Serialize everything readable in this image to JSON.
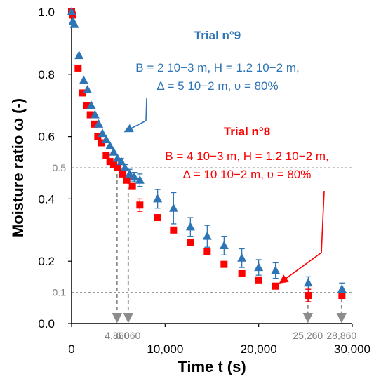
{
  "chart_data": {
    "type": "scatter",
    "xlabel": "Time t (s)",
    "ylabel": "Moisture ratio ω (-)",
    "xlim": [
      0,
      30000
    ],
    "ylim": [
      0,
      1.0
    ],
    "x_ticks": [
      "0",
      "10,000",
      "20,000",
      "30,000"
    ],
    "y_ticks": [
      "0.0",
      "0.2",
      "0.4",
      "0.6",
      "0.8",
      "1.0"
    ],
    "grid": false,
    "series": [
      {
        "name": "Trial n°9",
        "color": "#2E75B6",
        "marker": "triangle",
        "points": [
          {
            "x": 0,
            "y": 1.0
          },
          {
            "x": 150,
            "y": 0.97
          },
          {
            "x": 300,
            "y": 0.96
          },
          {
            "x": 800,
            "y": 0.86
          },
          {
            "x": 1300,
            "y": 0.78
          },
          {
            "x": 1700,
            "y": 0.75
          },
          {
            "x": 2100,
            "y": 0.7
          },
          {
            "x": 2500,
            "y": 0.67
          },
          {
            "x": 2900,
            "y": 0.64
          },
          {
            "x": 3300,
            "y": 0.61
          },
          {
            "x": 3700,
            "y": 0.59
          },
          {
            "x": 4100,
            "y": 0.57
          },
          {
            "x": 4500,
            "y": 0.55
          },
          {
            "x": 4900,
            "y": 0.53
          },
          {
            "x": 5300,
            "y": 0.52
          },
          {
            "x": 5700,
            "y": 0.5
          },
          {
            "x": 6200,
            "y": 0.48
          },
          {
            "x": 6700,
            "y": 0.47
          },
          {
            "x": 7300,
            "y": 0.46
          },
          {
            "x": 9200,
            "y": 0.4
          },
          {
            "x": 10900,
            "y": 0.37
          },
          {
            "x": 12700,
            "y": 0.31
          },
          {
            "x": 14500,
            "y": 0.28
          },
          {
            "x": 16300,
            "y": 0.25
          },
          {
            "x": 18200,
            "y": 0.21
          },
          {
            "x": 20000,
            "y": 0.18
          },
          {
            "x": 21800,
            "y": 0.17
          },
          {
            "x": 25300,
            "y": 0.13
          },
          {
            "x": 28900,
            "y": 0.11
          }
        ],
        "errors": [
          0,
          0,
          0,
          0,
          0,
          0,
          0,
          0,
          0,
          0,
          0,
          0,
          0,
          0,
          0.01,
          0.01,
          0.015,
          0.015,
          0.02,
          0.03,
          0.05,
          0.03,
          0.035,
          0.03,
          0.03,
          0.025,
          0.025,
          0.02,
          0.02
        ]
      },
      {
        "name": "Trial n°8",
        "color": "#FF0000",
        "marker": "square",
        "points": [
          {
            "x": 0,
            "y": 1.0
          },
          {
            "x": 150,
            "y": 0.99
          },
          {
            "x": 700,
            "y": 0.82
          },
          {
            "x": 1200,
            "y": 0.74
          },
          {
            "x": 1600,
            "y": 0.7
          },
          {
            "x": 2000,
            "y": 0.67
          },
          {
            "x": 2400,
            "y": 0.64
          },
          {
            "x": 2800,
            "y": 0.6
          },
          {
            "x": 3200,
            "y": 0.58
          },
          {
            "x": 3700,
            "y": 0.54
          },
          {
            "x": 4100,
            "y": 0.52
          },
          {
            "x": 4500,
            "y": 0.51
          },
          {
            "x": 4900,
            "y": 0.5
          },
          {
            "x": 5400,
            "y": 0.48
          },
          {
            "x": 5900,
            "y": 0.46
          },
          {
            "x": 6500,
            "y": 0.44
          },
          {
            "x": 7300,
            "y": 0.38
          },
          {
            "x": 9200,
            "y": 0.34
          },
          {
            "x": 10900,
            "y": 0.3
          },
          {
            "x": 12700,
            "y": 0.26
          },
          {
            "x": 14500,
            "y": 0.23
          },
          {
            "x": 16300,
            "y": 0.19
          },
          {
            "x": 18200,
            "y": 0.16
          },
          {
            "x": 20000,
            "y": 0.14
          },
          {
            "x": 21800,
            "y": 0.12
          },
          {
            "x": 25300,
            "y": 0.09
          },
          {
            "x": 28900,
            "y": 0.09
          }
        ],
        "errors": [
          0,
          0,
          0,
          0,
          0,
          0,
          0,
          0,
          0,
          0,
          0,
          0,
          0,
          0,
          0,
          0,
          0.02,
          0,
          0,
          0,
          0,
          0,
          0,
          0,
          0,
          0.02,
          0
        ]
      }
    ],
    "reference_lines": {
      "horizontal": [
        {
          "y": 0.5,
          "label": "0.5"
        },
        {
          "y": 0.1,
          "label": "0.1"
        }
      ],
      "vertical_arrows": [
        {
          "x": 4860,
          "y_from": 0.5,
          "label": "4,860"
        },
        {
          "x": 6060,
          "y_from": 0.5,
          "label": "6,060"
        },
        {
          "x": 25260,
          "y_from": 0.1,
          "label": "25,260"
        },
        {
          "x": 28860,
          "y_from": 0.1,
          "label": "28,860"
        }
      ]
    },
    "annotations": [
      {
        "title": "Trial n°9",
        "lines": [
          "B = 2 10−3 m, H = 1.2 10−2 m,",
          "Δ = 5 10−2 m, υ = 80%"
        ],
        "color": "#2E75B6",
        "arrow_to": {
          "x": 5300,
          "y": 0.62
        }
      },
      {
        "title": "Trial n°8",
        "lines": [
          "B = 4 10−3 m, H = 1.2 10−2 m,",
          "Δ = 10 10−2 m, υ = 80%"
        ],
        "color": "#FF0000",
        "arrow_to": {
          "x": 21800,
          "y": 0.13
        }
      }
    ]
  }
}
